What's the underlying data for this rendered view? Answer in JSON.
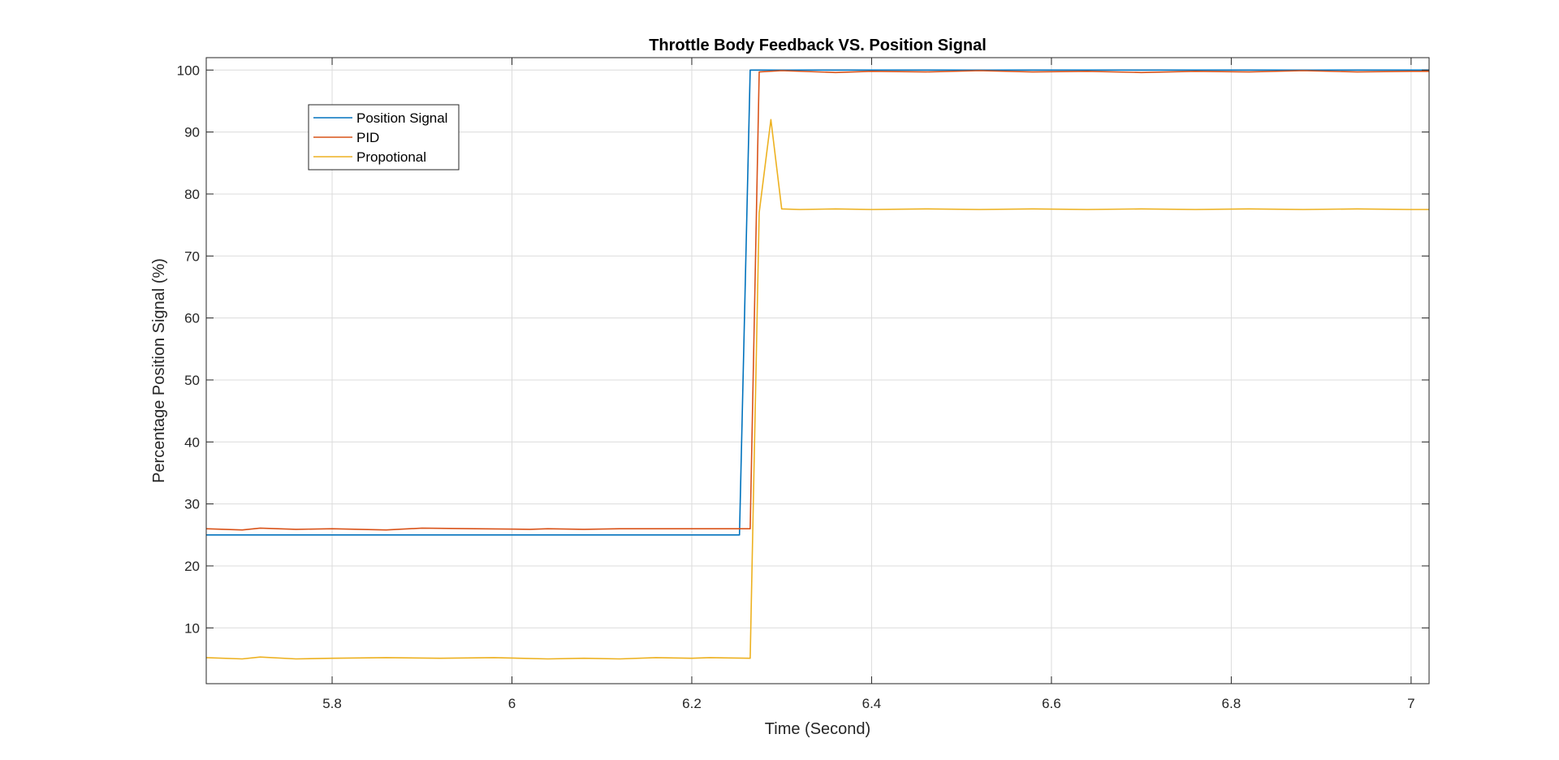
{
  "chart_data": {
    "type": "line",
    "title": "Throttle Body Feedback VS. Position Signal",
    "xlabel": "Time (Second)",
    "ylabel": "Percentage Position Signal (%)",
    "xlim": [
      5.66,
      7.02
    ],
    "ylim": [
      1,
      102
    ],
    "xticks": [
      5.8,
      6,
      6.2,
      6.4,
      6.6,
      6.8,
      7
    ],
    "xtick_labels": [
      "5.8",
      "6",
      "6.2",
      "6.4",
      "6.6",
      "6.8",
      "7"
    ],
    "yticks": [
      10,
      20,
      30,
      40,
      50,
      60,
      70,
      80,
      90,
      100
    ],
    "ytick_labels": [
      "10",
      "20",
      "30",
      "40",
      "50",
      "60",
      "70",
      "80",
      "90",
      "100"
    ],
    "grid": true,
    "legend_position": "top-left",
    "series": [
      {
        "name": "Position Signal",
        "color": "#0072BD",
        "x": [
          5.66,
          6.253,
          6.265,
          7.02
        ],
        "y": [
          25,
          25,
          100,
          100
        ]
      },
      {
        "name": "PID",
        "color": "#D95319",
        "x": [
          5.66,
          5.7,
          5.72,
          5.76,
          5.8,
          5.86,
          5.9,
          5.96,
          6.02,
          6.04,
          6.08,
          6.12,
          6.18,
          6.22,
          6.265,
          6.275,
          6.3,
          6.36,
          6.4,
          6.46,
          6.52,
          6.58,
          6.64,
          6.7,
          6.76,
          6.82,
          6.88,
          6.94,
          7.0,
          7.02
        ],
        "y": [
          26,
          25.8,
          26.1,
          25.9,
          26,
          25.8,
          26.1,
          26,
          25.9,
          26,
          25.9,
          26,
          26,
          26,
          26,
          99.7,
          99.9,
          99.6,
          99.8,
          99.7,
          99.9,
          99.7,
          99.8,
          99.6,
          99.8,
          99.7,
          99.9,
          99.7,
          99.8,
          99.8
        ]
      },
      {
        "name": "Propotional",
        "color": "#EDB120",
        "x": [
          5.66,
          5.7,
          5.72,
          5.76,
          5.8,
          5.86,
          5.92,
          5.98,
          6.04,
          6.08,
          6.12,
          6.16,
          6.2,
          6.22,
          6.265,
          6.275,
          6.288,
          6.3,
          6.32,
          6.36,
          6.4,
          6.46,
          6.52,
          6.58,
          6.64,
          6.7,
          6.76,
          6.82,
          6.88,
          6.94,
          7.0,
          7.02
        ],
        "y": [
          5.2,
          5.0,
          5.3,
          5.0,
          5.1,
          5.2,
          5.1,
          5.2,
          5.0,
          5.1,
          5.0,
          5.2,
          5.1,
          5.2,
          5.1,
          77,
          92,
          77.6,
          77.5,
          77.6,
          77.5,
          77.6,
          77.5,
          77.6,
          77.5,
          77.6,
          77.5,
          77.6,
          77.5,
          77.6,
          77.5,
          77.5
        ]
      }
    ]
  }
}
